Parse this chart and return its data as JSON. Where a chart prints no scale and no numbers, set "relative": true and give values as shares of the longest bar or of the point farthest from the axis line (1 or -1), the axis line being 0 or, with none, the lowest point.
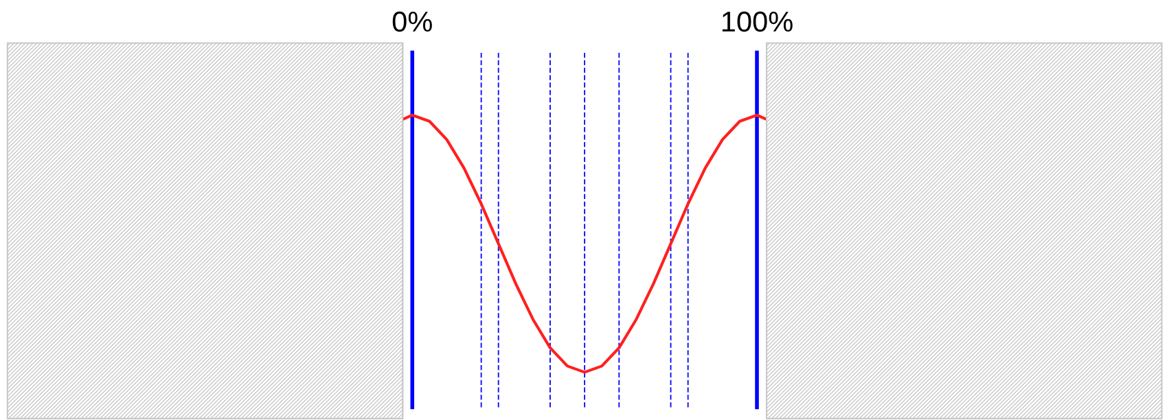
{
  "chart_data": {
    "type": "line",
    "relative": true,
    "x": [
      -2.5,
      0,
      5,
      10,
      15,
      20,
      25,
      30,
      35,
      40,
      45,
      50,
      55,
      60,
      65,
      70,
      75,
      80,
      85,
      90,
      95,
      100,
      102.5
    ],
    "series": [
      {
        "color": "#ff2020",
        "values": [
          0.985,
          1,
          0.976,
          0.905,
          0.794,
          0.655,
          0.5,
          0.345,
          0.206,
          0.095,
          0.024,
          0,
          0.024,
          0.095,
          0.206,
          0.345,
          0.5,
          0.655,
          0.794,
          0.905,
          0.976,
          1,
          0.985
        ]
      }
    ],
    "xlim": [
      -2.8,
      102.8
    ],
    "xticks": [
      {
        "value": 0,
        "label": "0%"
      },
      {
        "value": 100,
        "label": "100%"
      }
    ],
    "tick_labels": "x",
    "legend": false,
    "marker": "none",
    "line_style": "solid",
    "ref_lines": [
      {
        "axis": "x",
        "value": 0,
        "label": null,
        "color": "#0000ff",
        "line_style": "solid"
      },
      {
        "axis": "x",
        "value": 100,
        "label": null,
        "color": "#0000ff",
        "line_style": "solid"
      },
      {
        "axis": "x",
        "value": 20,
        "label": null,
        "color": "#0000ff",
        "line_style": "dashed"
      },
      {
        "axis": "x",
        "value": 25,
        "label": null,
        "color": "#0000ff",
        "line_style": "dashed"
      },
      {
        "axis": "x",
        "value": 40,
        "label": null,
        "color": "#0000ff",
        "line_style": "dashed"
      },
      {
        "axis": "x",
        "value": 50,
        "label": null,
        "color": "#0000ff",
        "line_style": "dashed"
      },
      {
        "axis": "x",
        "value": 60,
        "label": null,
        "color": "#0000ff",
        "line_style": "dashed"
      },
      {
        "axis": "x",
        "value": 75,
        "label": null,
        "color": "#0000ff",
        "line_style": "dashed"
      },
      {
        "axis": "x",
        "value": 80,
        "label": null,
        "color": "#0000ff",
        "line_style": "dashed"
      }
    ]
  }
}
